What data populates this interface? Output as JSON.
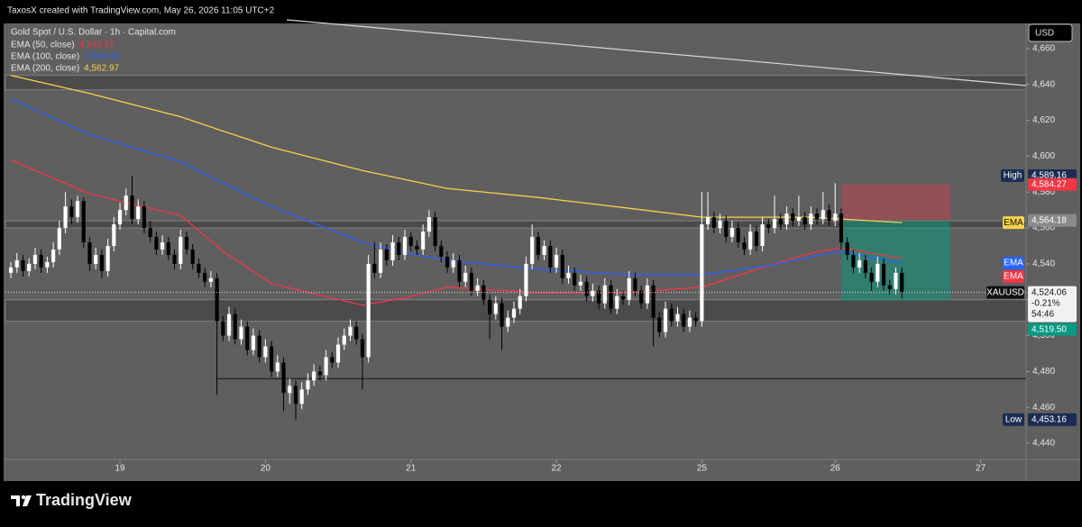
{
  "header": {
    "credit": "TaxosX created with TradingView.com, May 26, 2026 11:05 UTC+2"
  },
  "footer": {
    "brand": "TradingView"
  },
  "chart_data": {
    "type": "candlestick",
    "title": "Gold Spot / U.S. Dollar · 1h · Capital.com",
    "currency": "USD",
    "up_color": "#ffffff",
    "down_color": "#000000",
    "xlim": [
      -18.9,
      149.5
    ],
    "xticks": [
      {
        "value": 0,
        "label": "19"
      },
      {
        "value": 24,
        "label": "20"
      },
      {
        "value": 48,
        "label": "21"
      },
      {
        "value": 72,
        "label": "22"
      },
      {
        "value": 96,
        "label": "25"
      },
      {
        "value": 118,
        "label": "26"
      },
      {
        "value": 142,
        "label": "27"
      }
    ],
    "ylim": [
      4431,
      4674
    ],
    "yticks": [
      {
        "value": 4440,
        "label": "4,440"
      },
      {
        "value": 4460,
        "label": "4,460"
      },
      {
        "value": 4480,
        "label": "4,480"
      },
      {
        "value": 4500,
        "label": "4,500"
      },
      {
        "value": 4520,
        "label": "4,520"
      },
      {
        "value": 4540,
        "label": "4,540"
      },
      {
        "value": 4560,
        "label": "4,560"
      },
      {
        "value": 4580,
        "label": "4,580"
      },
      {
        "value": 4600,
        "label": "4,600"
      },
      {
        "value": 4620,
        "label": "4,620"
      },
      {
        "value": 4640,
        "label": "4,640"
      },
      {
        "value": 4660,
        "label": "4,660"
      }
    ],
    "x": [
      -18,
      -17,
      -16,
      -15,
      -14,
      -13,
      -12,
      -11,
      -10,
      -9,
      -8,
      -7,
      -6,
      -5,
      -4,
      -3,
      -2,
      -1,
      0,
      1,
      2,
      3,
      4,
      5,
      6,
      7,
      8,
      9,
      10,
      11,
      12,
      13,
      14,
      15,
      16,
      17,
      18,
      19,
      20,
      21,
      22,
      23,
      24,
      25,
      26,
      27,
      28,
      29,
      30,
      31,
      32,
      33,
      34,
      35,
      36,
      37,
      38,
      39,
      40,
      41,
      42,
      43,
      44,
      45,
      46,
      47,
      48,
      49,
      50,
      51,
      52,
      53,
      54,
      55,
      56,
      57,
      58,
      59,
      60,
      61,
      62,
      63,
      64,
      65,
      66,
      67,
      68,
      69,
      70,
      71,
      72,
      73,
      74,
      75,
      76,
      77,
      78,
      79,
      80,
      81,
      82,
      83,
      84,
      85,
      86,
      87,
      88,
      89,
      90,
      91,
      92,
      93,
      94,
      95,
      96,
      97,
      98,
      99,
      100,
      101,
      102,
      103,
      104,
      105,
      106,
      107,
      108,
      109,
      110,
      111,
      112,
      113,
      114,
      115,
      116,
      117,
      118,
      119,
      120,
      121,
      122,
      123,
      124,
      125,
      126,
      127,
      128,
      129
    ],
    "candles": [
      [
        4535,
        4541,
        4532,
        4538
      ],
      [
        4538,
        4546,
        4535,
        4542
      ],
      [
        4542,
        4545,
        4533,
        4536
      ],
      [
        4536,
        4543,
        4533,
        4540
      ],
      [
        4540,
        4549,
        4537,
        4545
      ],
      [
        4545,
        4548,
        4535,
        4538
      ],
      [
        4538,
        4544,
        4535,
        4541
      ],
      [
        4541,
        4552,
        4538,
        4548
      ],
      [
        4548,
        4564,
        4545,
        4560
      ],
      [
        4560,
        4580,
        4557,
        4572
      ],
      [
        4572,
        4576,
        4562,
        4566
      ],
      [
        4566,
        4578,
        4563,
        4575
      ],
      [
        4575,
        4577,
        4549,
        4552
      ],
      [
        4552,
        4555,
        4536,
        4540
      ],
      [
        4540,
        4549,
        4537,
        4545
      ],
      [
        4545,
        4548,
        4532,
        4536
      ],
      [
        4536,
        4554,
        4533,
        4550
      ],
      [
        4550,
        4566,
        4547,
        4562
      ],
      [
        4562,
        4574,
        4559,
        4570
      ],
      [
        4570,
        4582,
        4567,
        4578
      ],
      [
        4578,
        4589.16,
        4562,
        4565
      ],
      [
        4565,
        4576,
        4562,
        4572
      ],
      [
        4572,
        4575,
        4557,
        4560
      ],
      [
        4560,
        4564,
        4552,
        4555
      ],
      [
        4555,
        4558,
        4545,
        4548
      ],
      [
        4548,
        4556,
        4545,
        4552
      ],
      [
        4552,
        4555,
        4542,
        4545
      ],
      [
        4545,
        4548,
        4537,
        4540
      ],
      [
        4540,
        4559,
        4537,
        4555
      ],
      [
        4555,
        4558,
        4545,
        4548
      ],
      [
        4548,
        4551,
        4537,
        4540
      ],
      [
        4540,
        4543,
        4532,
        4535
      ],
      [
        4535,
        4538,
        4527,
        4530
      ],
      [
        4530,
        4536,
        4527,
        4532
      ],
      [
        4532,
        4535,
        4467,
        4508
      ],
      [
        4508,
        4511,
        4497,
        4500
      ],
      [
        4500,
        4516,
        4497,
        4512
      ],
      [
        4512,
        4515,
        4495,
        4498
      ],
      [
        4498,
        4509,
        4495,
        4505
      ],
      [
        4505,
        4508,
        4489,
        4492
      ],
      [
        4492,
        4504,
        4489,
        4500
      ],
      [
        4500,
        4503,
        4485,
        4488
      ],
      [
        4488,
        4498,
        4485,
        4494
      ],
      [
        4494,
        4497,
        4477,
        4480
      ],
      [
        4480,
        4489,
        4477,
        4485
      ],
      [
        4485,
        4488,
        4458,
        4468
      ],
      [
        4468,
        4476,
        4462,
        4472
      ],
      [
        4472,
        4475,
        4453.16,
        4462
      ],
      [
        4462,
        4474,
        4459,
        4470
      ],
      [
        4470,
        4479,
        4467,
        4475
      ],
      [
        4475,
        4484,
        4472,
        4480
      ],
      [
        4480,
        4483,
        4475,
        4478
      ],
      [
        4478,
        4492,
        4475,
        4488
      ],
      [
        4488,
        4491,
        4482,
        4485
      ],
      [
        4485,
        4499,
        4482,
        4495
      ],
      [
        4495,
        4504,
        4492,
        4500
      ],
      [
        4500,
        4509,
        4497,
        4505
      ],
      [
        4505,
        4508,
        4495,
        4498
      ],
      [
        4498,
        4501,
        4470,
        4488
      ],
      [
        4488,
        4545,
        4485,
        4540
      ],
      [
        4540,
        4552,
        4532,
        4535
      ],
      [
        4535,
        4552,
        4532,
        4548
      ],
      [
        4548,
        4551,
        4539,
        4542
      ],
      [
        4542,
        4556,
        4539,
        4552
      ],
      [
        4552,
        4555,
        4542,
        4545
      ],
      [
        4545,
        4559,
        4542,
        4555
      ],
      [
        4555,
        4558,
        4547,
        4550
      ],
      [
        4550,
        4553,
        4545,
        4548
      ],
      [
        4548,
        4562,
        4545,
        4558
      ],
      [
        4558,
        4570,
        4555,
        4566
      ],
      [
        4566,
        4569,
        4547,
        4550
      ],
      [
        4550,
        4553,
        4541,
        4544
      ],
      [
        4544,
        4547,
        4535,
        4538
      ],
      [
        4538,
        4546,
        4535,
        4542
      ],
      [
        4542,
        4545,
        4527,
        4530
      ],
      [
        4530,
        4539,
        4527,
        4535
      ],
      [
        4535,
        4538,
        4522,
        4525
      ],
      [
        4525,
        4532,
        4522,
        4528
      ],
      [
        4528,
        4531,
        4517,
        4520
      ],
      [
        4520,
        4523,
        4498,
        4512
      ],
      [
        4512,
        4522,
        4509,
        4518
      ],
      [
        4518,
        4521,
        4492,
        4505
      ],
      [
        4505,
        4514,
        4502,
        4510
      ],
      [
        4510,
        4519,
        4507,
        4515
      ],
      [
        4515,
        4526,
        4512,
        4522
      ],
      [
        4522,
        4544,
        4519,
        4540
      ],
      [
        4540,
        4562,
        4537,
        4555
      ],
      [
        4555,
        4558,
        4542,
        4545
      ],
      [
        4545,
        4553,
        4542,
        4550
      ],
      [
        4550,
        4553,
        4535,
        4538
      ],
      [
        4538,
        4549,
        4535,
        4545
      ],
      [
        4545,
        4548,
        4529,
        4532
      ],
      [
        4532,
        4539,
        4529,
        4535
      ],
      [
        4535,
        4538,
        4525,
        4528
      ],
      [
        4528,
        4534,
        4525,
        4530
      ],
      [
        4530,
        4533,
        4519,
        4522
      ],
      [
        4522,
        4529,
        4519,
        4525
      ],
      [
        4525,
        4528,
        4515,
        4518
      ],
      [
        4518,
        4532,
        4515,
        4528
      ],
      [
        4528,
        4531,
        4512,
        4515
      ],
      [
        4515,
        4526,
        4512,
        4522
      ],
      [
        4522,
        4525,
        4517,
        4520
      ],
      [
        4520,
        4536,
        4517,
        4532
      ],
      [
        4532,
        4535,
        4522,
        4525
      ],
      [
        4525,
        4528,
        4515,
        4518
      ],
      [
        4518,
        4532,
        4515,
        4528
      ],
      [
        4528,
        4531,
        4494,
        4510
      ],
      [
        4510,
        4513,
        4499,
        4502
      ],
      [
        4502,
        4519,
        4499,
        4515
      ],
      [
        4515,
        4518,
        4505,
        4508
      ],
      [
        4508,
        4516,
        4505,
        4512
      ],
      [
        4512,
        4515,
        4502,
        4505
      ],
      [
        4505,
        4514,
        4502,
        4510
      ],
      [
        4510,
        4513,
        4505,
        4508
      ],
      [
        4508,
        4580,
        4505,
        4562
      ],
      [
        4562,
        4580,
        4559,
        4566
      ],
      [
        4566,
        4569,
        4557,
        4560
      ],
      [
        4560,
        4568,
        4557,
        4564
      ],
      [
        4564,
        4567,
        4552,
        4555
      ],
      [
        4555,
        4564,
        4552,
        4560
      ],
      [
        4560,
        4563,
        4549,
        4552
      ],
      [
        4552,
        4555,
        4545,
        4548
      ],
      [
        4548,
        4562,
        4545,
        4558
      ],
      [
        4558,
        4561,
        4547,
        4550
      ],
      [
        4550,
        4566,
        4547,
        4562
      ],
      [
        4562,
        4565,
        4557,
        4560
      ],
      [
        4560,
        4578,
        4557,
        4565
      ],
      [
        4565,
        4568,
        4559,
        4562
      ],
      [
        4562,
        4572,
        4559,
        4568
      ],
      [
        4568,
        4571,
        4561,
        4564
      ],
      [
        4564,
        4578,
        4561,
        4566
      ],
      [
        4566,
        4569,
        4559,
        4562
      ],
      [
        4562,
        4572,
        4559,
        4568
      ],
      [
        4568,
        4571,
        4562,
        4565
      ],
      [
        4565,
        4580,
        4562,
        4570
      ],
      [
        4570,
        4573,
        4561,
        4564
      ],
      [
        4564,
        4585,
        4561,
        4568
      ],
      [
        4568,
        4571,
        4548,
        4552
      ],
      [
        4552,
        4555,
        4542,
        4545
      ],
      [
        4545,
        4548,
        4535,
        4538
      ],
      [
        4538,
        4546,
        4535,
        4542
      ],
      [
        4542,
        4545,
        4532,
        4535
      ],
      [
        4535,
        4538,
        4525,
        4530
      ],
      [
        4530,
        4544,
        4527,
        4540
      ],
      [
        4540,
        4543,
        4525,
        4528
      ],
      [
        4528,
        4531,
        4523,
        4526
      ],
      [
        4526,
        4538,
        4523,
        4535
      ],
      [
        4535,
        4538,
        4521,
        4524.06
      ]
    ],
    "series": [
      {
        "name": "EMA (50, close)",
        "color": "#f23645",
        "legend_value": {
          "value": 4542.97,
          "label": "4,542.97"
        },
        "tag": "EMA",
        "x": [
          -18,
          -5,
          10,
          17,
          25,
          40,
          47,
          54,
          69,
          84,
          96,
          107,
          114,
          119,
          129
        ],
        "values": [
          4598,
          4579,
          4567,
          4547,
          4529,
          4517,
          4521,
          4527,
          4524,
          4524,
          4527,
          4539,
          4546,
          4549,
          4542.97
        ]
      },
      {
        "name": "EMA (100, close)",
        "color": "#2962ff",
        "legend_value": {
          "value": 4540.4,
          "label": "4,540.40"
        },
        "tag": "EMA",
        "x": [
          -18,
          -5,
          10,
          17,
          25,
          40,
          47,
          54,
          69,
          84,
          96,
          107,
          114,
          119,
          129
        ],
        "values": [
          4632,
          4612,
          4597,
          4585,
          4572,
          4552,
          4546,
          4542,
          4537,
          4534,
          4534,
          4539,
          4544,
          4547,
          4540.4
        ]
      },
      {
        "name": "EMA (200, close)",
        "color": "#f7d24a",
        "legend_value": {
          "value": 4562.97,
          "label": "4,562.97"
        },
        "tag": "EMA",
        "x": [
          -18,
          -5,
          10,
          17,
          25,
          40,
          47,
          54,
          69,
          84,
          96,
          107,
          114,
          119,
          129
        ],
        "values": [
          4645,
          4635,
          4622,
          4614,
          4605,
          4592,
          4587,
          4582,
          4577,
          4571,
          4566,
          4566,
          4566,
          4565,
          4562.97
        ]
      }
    ],
    "zones": [
      [
        4637,
        4645
      ],
      [
        4560,
        4564
      ],
      [
        4508,
        4520
      ]
    ],
    "level_line": {
      "value": 4476,
      "x_from": 16
    },
    "position": {
      "x": [
        119,
        137
      ],
      "stop": {
        "value": 4584.27,
        "label": "4,584.27"
      },
      "entry": {
        "value": 4564.18,
        "label": "4,564.18"
      },
      "target": {
        "value": 4519.5,
        "label": "4,519.50"
      }
    },
    "high": {
      "caption": "High",
      "value": 4589.16,
      "label": "4,589.16"
    },
    "low": {
      "caption": "Low",
      "value": 4453.16,
      "label": "4,453.16"
    },
    "last": {
      "symbol": "XAUUSD",
      "value": 4524.06,
      "label": "4,524.06",
      "change": "-0.21%",
      "countdown": "54:46"
    }
  }
}
